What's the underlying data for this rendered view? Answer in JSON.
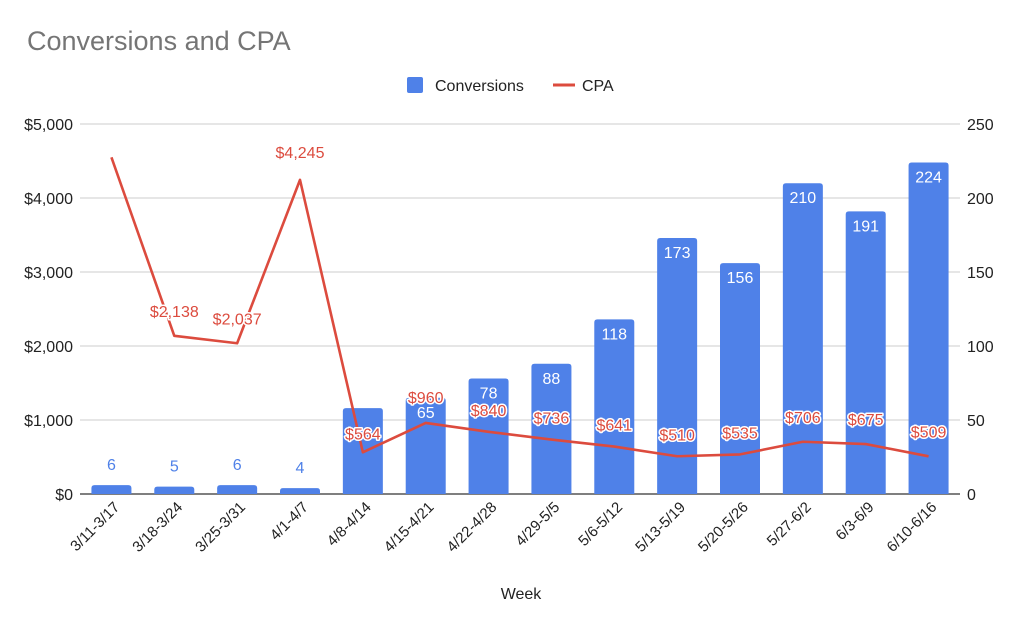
{
  "chart_data": {
    "type": "bar",
    "title": "Conversions and CPA",
    "xlabel": "Week",
    "categories": [
      "3/11-3/17",
      "3/18-3/24",
      "3/25-3/31",
      "4/1-4/7",
      "4/8-4/14",
      "4/15-4/21",
      "4/22-4/28",
      "4/29-5/5",
      "5/6-5/12",
      "5/13-5/19",
      "5/20-5/26",
      "5/27-6/2",
      "6/3-6/9",
      "6/10-6/16"
    ],
    "series": [
      {
        "name": "Conversions",
        "type": "bar",
        "axis": "right",
        "color": "#4f81e8",
        "values": [
          6,
          5,
          6,
          4,
          58,
          65,
          78,
          88,
          118,
          173,
          156,
          210,
          191,
          224
        ],
        "labels": [
          "6",
          "5",
          "6",
          "4",
          "",
          "65",
          "78",
          "88",
          "118",
          "173",
          "156",
          "210",
          "191",
          "224"
        ]
      },
      {
        "name": "CPA",
        "type": "line",
        "axis": "left",
        "color": "#dc4b3e",
        "values": [
          4550,
          2138,
          2037,
          4245,
          564,
          960,
          840,
          736,
          641,
          510,
          535,
          706,
          675,
          509
        ],
        "labels": [
          "",
          "$2,138",
          "$2,037",
          "$4,245",
          "$564",
          "$960",
          "$840",
          "$736",
          "$641",
          "$510",
          "$535",
          "$706",
          "$675",
          "$509"
        ]
      }
    ],
    "y_left": {
      "range": [
        0,
        5000
      ],
      "ticks": [
        "$0",
        "$1,000",
        "$2,000",
        "$3,000",
        "$4,000",
        "$5,000"
      ]
    },
    "y_right": {
      "range": [
        0,
        250
      ],
      "ticks": [
        "0",
        "50",
        "100",
        "150",
        "200",
        "250"
      ]
    },
    "grid": true,
    "legend": "top-center"
  }
}
